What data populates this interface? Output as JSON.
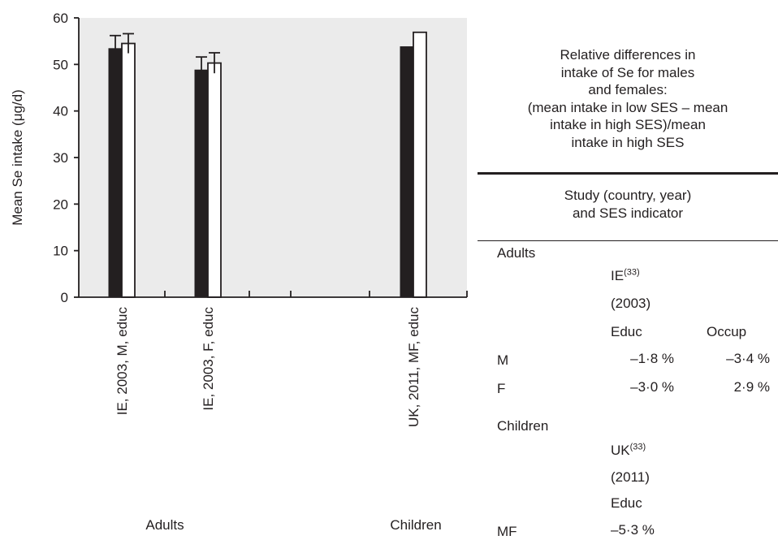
{
  "chart_data": {
    "type": "bar",
    "ylabel": "Mean Se intake (μg/d)",
    "ylim": [
      0,
      60
    ],
    "yticks": [
      0,
      10,
      20,
      30,
      40,
      50,
      60
    ],
    "groups": [
      {
        "label": "IE, 2003, M, educ",
        "low_ses": 53.4,
        "high_ses": 54.5,
        "error_low": 2.8,
        "error_high": 2.1
      },
      {
        "label": "IE, 2003, F, educ",
        "low_ses": 48.8,
        "high_ses": 50.3,
        "error_low": 2.8,
        "error_high": 2.2
      },
      {
        "label": "UK, 2011, MF, educ",
        "low_ses": 53.8,
        "high_ses": 56.9,
        "error_low": null,
        "error_high": null
      }
    ],
    "group_labels": [
      "Adults",
      "Children"
    ],
    "series_colors": {
      "low_ses": "#231f20",
      "high_ses": "#ffffff"
    },
    "grid": false
  },
  "table": {
    "header_lines": [
      "Relative differences in",
      "intake of Se for males",
      "and females:",
      "(mean intake in low SES – mean",
      "intake in high SES)/mean",
      "intake in high SES"
    ],
    "study_header_lines": [
      "Study (country, year)",
      "and SES indicator"
    ],
    "adults": {
      "section": "Adults",
      "study": "IE",
      "ref": "(33)",
      "year": "(2003)",
      "col1": "Educ",
      "col2": "Occup",
      "rows": [
        {
          "label": "M",
          "v1": "–1·8 %",
          "v2": "–3·4 %"
        },
        {
          "label": "F",
          "v1": "–3·0 %",
          "v2": "2·9 %"
        }
      ]
    },
    "children": {
      "section": "Children",
      "study": "UK",
      "ref": "(33)",
      "year": "(2011)",
      "col1": "Educ",
      "rows": [
        {
          "label": "MF",
          "v1": "–5·3 %"
        }
      ]
    }
  }
}
